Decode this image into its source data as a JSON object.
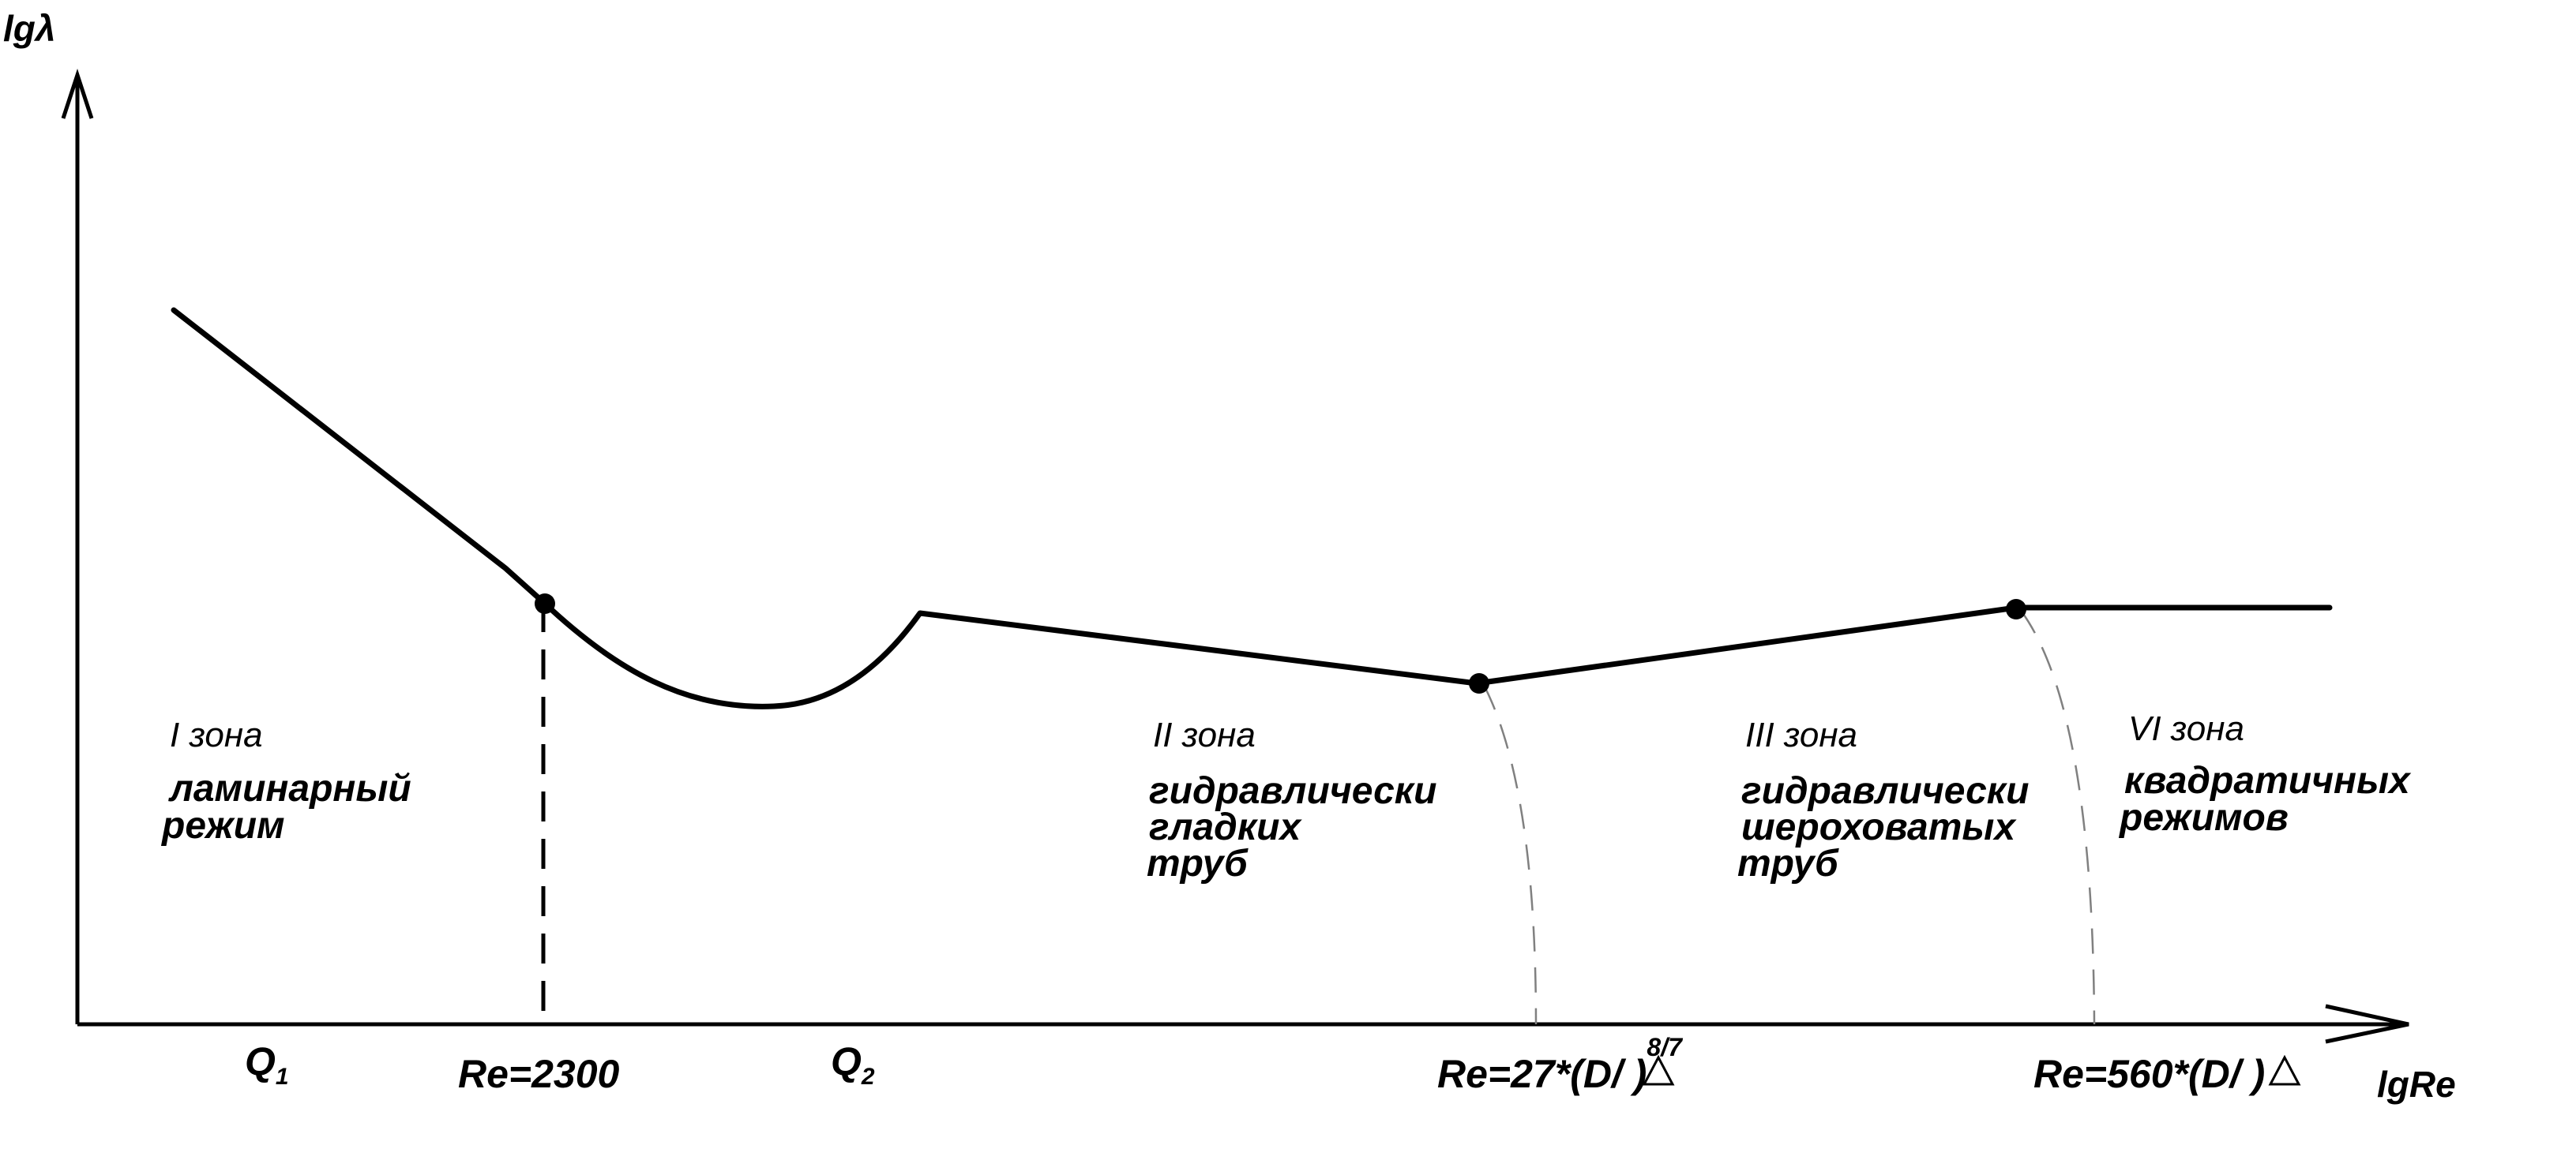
{
  "axes": {
    "y_label": "lgλ",
    "x_label": "lgRe"
  },
  "zones": [
    {
      "title": "I зона",
      "lines": [
        "ламинарный",
        "режим"
      ]
    },
    {
      "title": "II зона",
      "lines": [
        "гидравлически",
        "гладких",
        "труб"
      ]
    },
    {
      "title": "III зона",
      "lines": [
        "гидравлически",
        "шероховатых",
        "труб"
      ]
    },
    {
      "title": "VI зона",
      "lines": [
        "квадратичных",
        "режимов"
      ]
    }
  ],
  "ticks": {
    "q1": "Q",
    "q1_sub": "1",
    "re_2300": "Re=2300",
    "q2": "Q",
    "q2_sub": "2",
    "re_27": "Re=27*(D/",
    "re_27_close": ")",
    "re_27_exp": "8/7",
    "re_560": "Re=560*(D/",
    "re_560_close": ")"
  },
  "colors": {
    "line": "#000000",
    "boundary": "#808080",
    "background": "#ffffff"
  }
}
